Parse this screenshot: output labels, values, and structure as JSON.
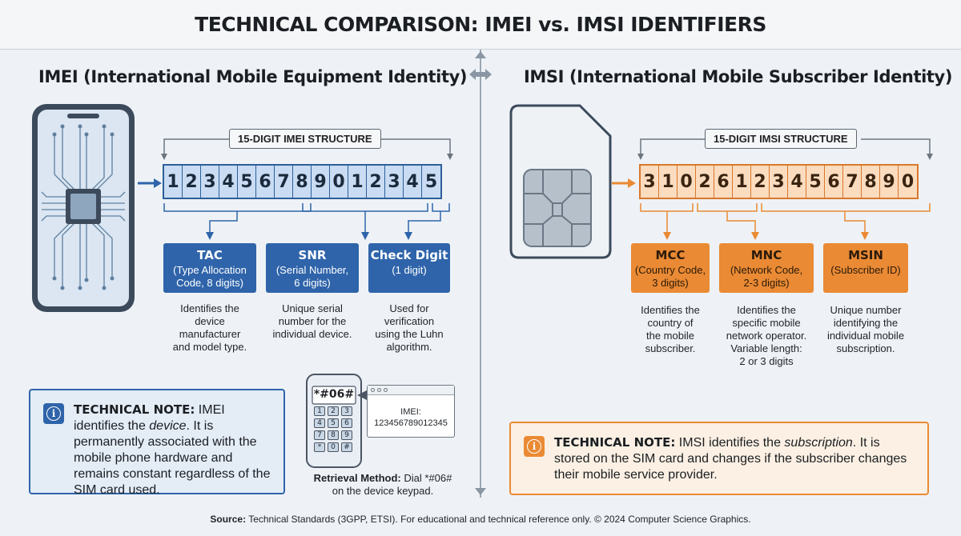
{
  "title": "TECHNICAL COMPARISON: IMEI vs. IMSI IDENTIFIERS",
  "imei": {
    "heading": "IMEI (International Mobile Equipment Identity)",
    "structure_label": "15-DIGIT IMEI STRUCTURE",
    "digits": [
      "1",
      "2",
      "3",
      "4",
      "5",
      "6",
      "7",
      "8",
      "9",
      "0",
      "1",
      "2",
      "3",
      "4",
      "5"
    ],
    "segments": [
      {
        "title": "TAC",
        "sub1": "(Type Allocation",
        "sub2": "Code, 8 digits)",
        "desc": [
          "Identifies the",
          "device",
          "manufacturer",
          "and model type."
        ]
      },
      {
        "title": "SNR",
        "sub1": "(Serial Number,",
        "sub2": "6 digits)",
        "desc": [
          "Unique serial",
          "number for the",
          "individual device."
        ]
      },
      {
        "title": "Check Digit",
        "sub1": "(1 digit)",
        "sub2": "",
        "desc": [
          "Used for",
          "verification",
          "using the Luhn",
          "algorithm."
        ]
      }
    ],
    "note": {
      "label": "TECHNICAL NOTE:",
      "text1": " IMEI identifies the ",
      "emph": "device",
      "text2": ". It is permanently associated with the mobile phone hardware and remains constant regardless of the SIM card used."
    },
    "retrieval": {
      "keypad_display": "*#06#",
      "keys": [
        "1",
        "2",
        "3",
        "4",
        "5",
        "6",
        "7",
        "8",
        "9",
        "*",
        "0",
        "#"
      ],
      "popup_line1": "IMEI:",
      "popup_line2": "123456789012345",
      "label": "Retrieval Method:",
      "text": " Dial *#06#",
      "text2": "on the device keypad."
    }
  },
  "imsi": {
    "heading": "IMSI (International Mobile Subscriber Identity)",
    "structure_label": "15-DIGIT IMSI STRUCTURE",
    "digits": [
      "3",
      "1",
      "0",
      "2",
      "6",
      "1",
      "2",
      "3",
      "4",
      "5",
      "6",
      "7",
      "8",
      "9",
      "0"
    ],
    "segments": [
      {
        "title": "MCC",
        "sub1": "(Country Code,",
        "sub2": "3 digits)",
        "desc": [
          "Identifies the",
          "country of",
          "the mobile",
          "subscriber."
        ]
      },
      {
        "title": "MNC",
        "sub1": "(Network Code,",
        "sub2": "2-3 digits)",
        "desc": [
          "Identifies the",
          "specific mobile",
          "network operator.",
          "Variable length:",
          "2 or 3 digits"
        ]
      },
      {
        "title": "MSIN",
        "sub1": "(Subscriber ID)",
        "sub2": "",
        "desc": [
          "Unique number",
          "identifying the",
          "individual mobile",
          "subscription."
        ]
      }
    ],
    "note": {
      "label": "TECHNICAL NOTE:",
      "text1": " IMSI identifies the ",
      "emph": "subscription",
      "text2": ". It is stored on the SIM card and changes if the subscriber changes their mobile service provider."
    }
  },
  "footer": {
    "label": "Source:",
    "text": " Technical Standards (3GPP, ETSI). For educational and technical reference only. © 2024 Computer Science Graphics."
  },
  "colors": {
    "imei_accent": "#2f64aa",
    "imsi_accent": "#ea8a34",
    "background": "#eef2f6"
  },
  "icons": [
    "smartphone-circuit-icon",
    "sim-card-icon",
    "info-icon",
    "double-arrow-icon",
    "keypad-phone-icon"
  ]
}
